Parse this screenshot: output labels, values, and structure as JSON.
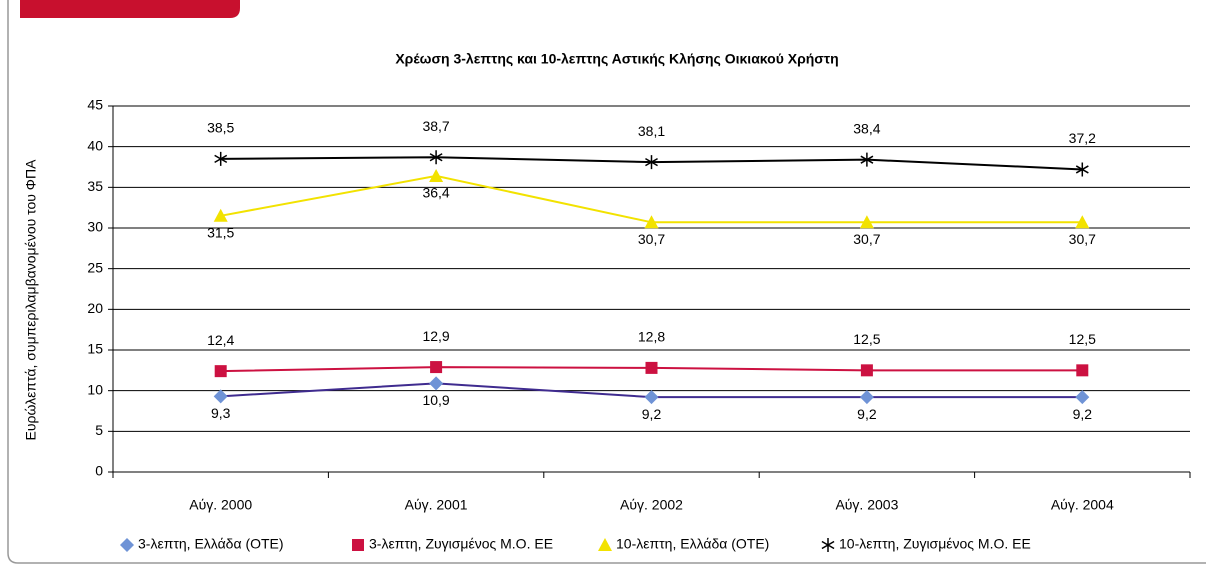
{
  "chart_data": {
    "type": "line",
    "title": "Χρέωση 3-λεπτης και 10-λεπτης Αστικής Κλήσης Οικιακού Χρήστη",
    "y_label": "Ευρώλεπτά, συμπεριλαμβανομένου του ΦΠΑ",
    "categories": [
      "Αύγ. 2000",
      "Αύγ. 2001",
      "Αύγ. 2002",
      "Αύγ. 2003",
      "Αύγ. 2004"
    ],
    "ylim": [
      0,
      45
    ],
    "yticks": [
      0,
      5,
      10,
      15,
      20,
      25,
      30,
      35,
      40,
      45
    ],
    "grid": true,
    "legend": "bottom",
    "series": [
      {
        "name": "3-λεπτη, Ελλάδα (ΟΤΕ)",
        "color": "#6f93d6",
        "line_color": "#3f2b8f",
        "marker": "diamond",
        "label_position": "below",
        "values": [
          9.3,
          10.9,
          9.2,
          9.2,
          9.2
        ],
        "value_labels": [
          "9,3",
          "10,9",
          "9,2",
          "9,2",
          "9,2"
        ]
      },
      {
        "name": "3-λεπτη, Ζυγισμένος Μ.Ο. ΕΕ",
        "color": "#cc1141",
        "line_color": "#cc1141",
        "marker": "square",
        "label_position": "above",
        "values": [
          12.4,
          12.9,
          12.8,
          12.5,
          12.5
        ],
        "value_labels": [
          "12,4",
          "12,9",
          "12,8",
          "12,5",
          "12,5"
        ]
      },
      {
        "name": "10-λεπτη, Ελλάδα (ΟΤΕ)",
        "color": "#f2e200",
        "line_color": "#f2e200",
        "marker": "triangle",
        "label_position": "below",
        "values": [
          31.5,
          36.4,
          30.7,
          30.7,
          30.7
        ],
        "value_labels": [
          "31,5",
          "36,4",
          "30,7",
          "30,7",
          "30,7"
        ]
      },
      {
        "name": "10-λεπτη, Ζυγισμένος Μ.Ο. ΕΕ",
        "color": "#000000",
        "line_color": "#000000",
        "marker": "star",
        "label_position": "above",
        "values": [
          38.5,
          38.7,
          38.1,
          38.4,
          37.2
        ],
        "value_labels": [
          "38,5",
          "38,7",
          "38,1",
          "38,4",
          "37,2"
        ]
      }
    ]
  }
}
